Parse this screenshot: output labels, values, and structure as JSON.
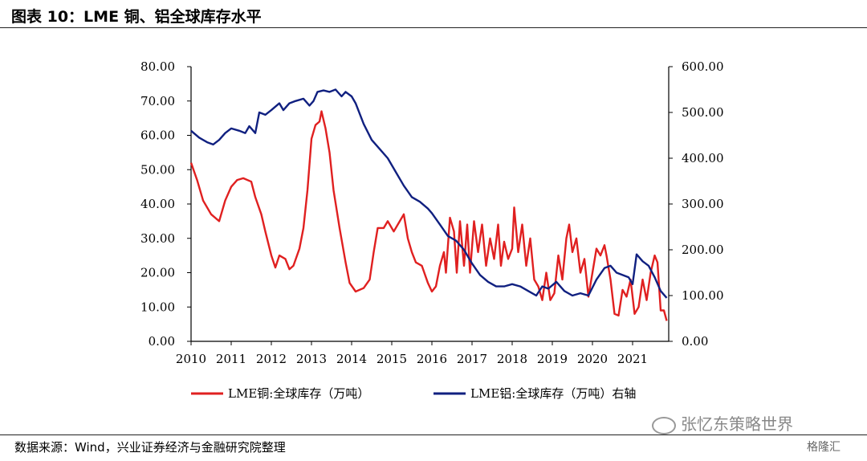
{
  "title": "图表 10：LME 铜、铝全球库存水平",
  "source": "数据来源：Wind，兴业证券经济与金融研究院整理",
  "watermark": "张忆东策略世界",
  "logo": "格隆汇",
  "colors": {
    "copper": "#e02020",
    "aluminum": "#102080",
    "axis": "#000000"
  },
  "chart_data": {
    "type": "line",
    "xlabels": [
      "2010",
      "2011",
      "2012",
      "2013",
      "2014",
      "2015",
      "2016",
      "2017",
      "2018",
      "2019",
      "2020",
      "2021"
    ],
    "left_axis": {
      "min": 0,
      "max": 80,
      "ticks": [
        "0.00",
        "10.00",
        "20.00",
        "30.00",
        "40.00",
        "50.00",
        "60.00",
        "70.00",
        "80.00"
      ]
    },
    "right_axis": {
      "min": 0,
      "max": 600,
      "ticks": [
        "0.00",
        "100.00",
        "200.00",
        "300.00",
        "400.00",
        "500.00",
        "600.00"
      ]
    },
    "x_range": [
      2010,
      2021.9
    ],
    "series": [
      {
        "name": "LME铜:全球库存（万吨）",
        "axis": "left",
        "color": "#e02020",
        "points": [
          [
            2010.0,
            52
          ],
          [
            2010.15,
            47
          ],
          [
            2010.3,
            41
          ],
          [
            2010.5,
            37
          ],
          [
            2010.7,
            35
          ],
          [
            2010.85,
            41
          ],
          [
            2011.0,
            45
          ],
          [
            2011.15,
            47
          ],
          [
            2011.3,
            47.5
          ],
          [
            2011.5,
            46.5
          ],
          [
            2011.6,
            42
          ],
          [
            2011.75,
            37
          ],
          [
            2011.85,
            32
          ],
          [
            2012.0,
            25
          ],
          [
            2012.1,
            21.5
          ],
          [
            2012.2,
            25
          ],
          [
            2012.35,
            24
          ],
          [
            2012.45,
            21
          ],
          [
            2012.55,
            22
          ],
          [
            2012.7,
            27
          ],
          [
            2012.8,
            33
          ],
          [
            2012.9,
            44
          ],
          [
            2013.0,
            59
          ],
          [
            2013.1,
            63
          ],
          [
            2013.2,
            64
          ],
          [
            2013.25,
            67
          ],
          [
            2013.35,
            62
          ],
          [
            2013.45,
            55
          ],
          [
            2013.55,
            44
          ],
          [
            2013.7,
            33
          ],
          [
            2013.85,
            23
          ],
          [
            2013.95,
            17
          ],
          [
            2014.1,
            14.5
          ],
          [
            2014.3,
            15.5
          ],
          [
            2014.45,
            18
          ],
          [
            2014.55,
            26
          ],
          [
            2014.65,
            33
          ],
          [
            2014.8,
            33
          ],
          [
            2014.9,
            35
          ],
          [
            2015.05,
            32
          ],
          [
            2015.2,
            35
          ],
          [
            2015.3,
            37
          ],
          [
            2015.4,
            30
          ],
          [
            2015.5,
            26
          ],
          [
            2015.6,
            23
          ],
          [
            2015.75,
            22
          ],
          [
            2015.9,
            17
          ],
          [
            2016.0,
            14.5
          ],
          [
            2016.1,
            16
          ],
          [
            2016.2,
            22
          ],
          [
            2016.3,
            26
          ],
          [
            2016.35,
            20
          ],
          [
            2016.45,
            36
          ],
          [
            2016.55,
            32
          ],
          [
            2016.62,
            20
          ],
          [
            2016.7,
            35
          ],
          [
            2016.8,
            22
          ],
          [
            2016.88,
            34
          ],
          [
            2016.95,
            20
          ],
          [
            2017.05,
            35
          ],
          [
            2017.15,
            26
          ],
          [
            2017.25,
            34
          ],
          [
            2017.35,
            22
          ],
          [
            2017.45,
            30
          ],
          [
            2017.55,
            24
          ],
          [
            2017.65,
            34
          ],
          [
            2017.72,
            22
          ],
          [
            2017.8,
            29
          ],
          [
            2017.9,
            24
          ],
          [
            2018.0,
            27
          ],
          [
            2018.05,
            39
          ],
          [
            2018.15,
            26
          ],
          [
            2018.25,
            34
          ],
          [
            2018.35,
            22
          ],
          [
            2018.45,
            30
          ],
          [
            2018.55,
            18
          ],
          [
            2018.65,
            16
          ],
          [
            2018.75,
            12
          ],
          [
            2018.85,
            20
          ],
          [
            2018.95,
            12
          ],
          [
            2019.05,
            14
          ],
          [
            2019.15,
            25
          ],
          [
            2019.25,
            18
          ],
          [
            2019.35,
            30
          ],
          [
            2019.42,
            34
          ],
          [
            2019.5,
            26
          ],
          [
            2019.6,
            30
          ],
          [
            2019.7,
            20
          ],
          [
            2019.8,
            24
          ],
          [
            2019.9,
            13
          ],
          [
            2020.0,
            20
          ],
          [
            2020.1,
            27
          ],
          [
            2020.2,
            25
          ],
          [
            2020.3,
            28
          ],
          [
            2020.35,
            25
          ],
          [
            2020.45,
            18
          ],
          [
            2020.55,
            8
          ],
          [
            2020.65,
            7.5
          ],
          [
            2020.75,
            15
          ],
          [
            2020.85,
            13
          ],
          [
            2020.95,
            18
          ],
          [
            2021.05,
            8
          ],
          [
            2021.15,
            10
          ],
          [
            2021.25,
            18
          ],
          [
            2021.35,
            12
          ],
          [
            2021.45,
            20
          ],
          [
            2021.55,
            25
          ],
          [
            2021.62,
            23
          ],
          [
            2021.7,
            9
          ],
          [
            2021.78,
            9
          ],
          [
            2021.85,
            6
          ]
        ]
      },
      {
        "name": "LME铝:全球库存（万吨）右轴",
        "axis": "right",
        "color": "#102080",
        "points": [
          [
            2010.0,
            460
          ],
          [
            2010.2,
            445
          ],
          [
            2010.4,
            435
          ],
          [
            2010.55,
            430
          ],
          [
            2010.7,
            440
          ],
          [
            2010.85,
            455
          ],
          [
            2011.0,
            465
          ],
          [
            2011.2,
            460
          ],
          [
            2011.35,
            455
          ],
          [
            2011.45,
            470
          ],
          [
            2011.6,
            455
          ],
          [
            2011.7,
            500
          ],
          [
            2011.85,
            495
          ],
          [
            2012.0,
            505
          ],
          [
            2012.2,
            520
          ],
          [
            2012.3,
            505
          ],
          [
            2012.45,
            520
          ],
          [
            2012.6,
            525
          ],
          [
            2012.8,
            530
          ],
          [
            2012.95,
            515
          ],
          [
            2013.05,
            525
          ],
          [
            2013.15,
            545
          ],
          [
            2013.3,
            548
          ],
          [
            2013.45,
            545
          ],
          [
            2013.6,
            550
          ],
          [
            2013.75,
            535
          ],
          [
            2013.85,
            545
          ],
          [
            2014.0,
            535
          ],
          [
            2014.1,
            520
          ],
          [
            2014.3,
            475
          ],
          [
            2014.5,
            440
          ],
          [
            2014.7,
            420
          ],
          [
            2014.9,
            400
          ],
          [
            2015.1,
            370
          ],
          [
            2015.3,
            340
          ],
          [
            2015.5,
            315
          ],
          [
            2015.7,
            305
          ],
          [
            2015.9,
            290
          ],
          [
            2016.0,
            280
          ],
          [
            2016.2,
            255
          ],
          [
            2016.4,
            230
          ],
          [
            2016.6,
            220
          ],
          [
            2016.8,
            200
          ],
          [
            2017.0,
            170
          ],
          [
            2017.2,
            145
          ],
          [
            2017.4,
            130
          ],
          [
            2017.6,
            120
          ],
          [
            2017.8,
            120
          ],
          [
            2018.0,
            125
          ],
          [
            2018.2,
            120
          ],
          [
            2018.4,
            110
          ],
          [
            2018.6,
            100
          ],
          [
            2018.75,
            120
          ],
          [
            2018.9,
            115
          ],
          [
            2019.1,
            130
          ],
          [
            2019.3,
            110
          ],
          [
            2019.5,
            100
          ],
          [
            2019.7,
            105
          ],
          [
            2019.9,
            100
          ],
          [
            2020.1,
            135
          ],
          [
            2020.3,
            160
          ],
          [
            2020.45,
            165
          ],
          [
            2020.6,
            150
          ],
          [
            2020.75,
            145
          ],
          [
            2020.9,
            140
          ],
          [
            2021.0,
            125
          ],
          [
            2021.1,
            190
          ],
          [
            2021.25,
            175
          ],
          [
            2021.4,
            165
          ],
          [
            2021.55,
            140
          ],
          [
            2021.7,
            110
          ],
          [
            2021.85,
            95
          ]
        ]
      }
    ]
  }
}
